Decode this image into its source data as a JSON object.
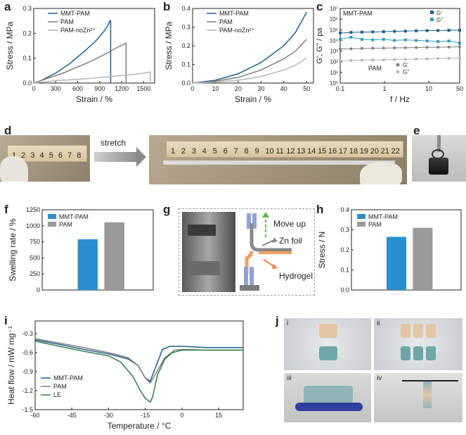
{
  "panels": {
    "a": "a",
    "b": "b",
    "c": "c",
    "d": "d",
    "e": "e",
    "f": "f",
    "g": "g",
    "h": "h",
    "i": "i",
    "j": "j"
  },
  "colors": {
    "mmt": "#1f5f8b",
    "pam": "#7f7f7f",
    "pamnozn": "#b5b5b5",
    "le": "#2e7d46",
    "bar_mmt": "#2a8fd0",
    "bar_pam": "#9a9a9a"
  },
  "chart_data": [
    {
      "id": "a",
      "type": "line",
      "title": "",
      "xlabel": "Strain / %",
      "ylabel": "Stress / MPa",
      "xlim": [
        0,
        1650
      ],
      "ylim": [
        0,
        0.3
      ],
      "xticks": [
        "0",
        "300",
        "600",
        "900",
        "1200",
        "1500"
      ],
      "yticks": [
        "0.0",
        "0.1",
        "0.2",
        "0.3"
      ],
      "series": [
        {
          "name": "MMT-PAM",
          "x": [
            0,
            100,
            300,
            500,
            700,
            850,
            950,
            1000,
            1040,
            1050,
            1050
          ],
          "y": [
            0,
            0.01,
            0.04,
            0.08,
            0.13,
            0.17,
            0.205,
            0.225,
            0.25,
            0.25,
            0
          ]
        },
        {
          "name": "PAM",
          "x": [
            0,
            200,
            400,
            600,
            800,
            1000,
            1150,
            1250,
            1260,
            1260
          ],
          "y": [
            0,
            0.02,
            0.04,
            0.065,
            0.09,
            0.12,
            0.145,
            0.158,
            0.16,
            0
          ]
        },
        {
          "name": "PAM-noZn²⁺",
          "x": [
            0,
            300,
            600,
            900,
            1200,
            1400,
            1550,
            1590,
            1590
          ],
          "y": [
            0,
            0.01,
            0.015,
            0.022,
            0.03,
            0.036,
            0.042,
            0.045,
            0
          ]
        }
      ]
    },
    {
      "id": "b",
      "type": "line",
      "title": "",
      "xlabel": "Strain / %",
      "ylabel": "Stress / MPa",
      "xlim": [
        0,
        53
      ],
      "ylim": [
        0,
        0.4
      ],
      "xticks": [
        "0",
        "10",
        "20",
        "30",
        "40",
        "50"
      ],
      "yticks": [
        "0.0",
        "0.1",
        "0.2",
        "0.3",
        "0.4"
      ],
      "series": [
        {
          "name": "MMT-PAM",
          "x": [
            0,
            10,
            20,
            30,
            40,
            45,
            50
          ],
          "y": [
            0,
            0.015,
            0.05,
            0.11,
            0.2,
            0.27,
            0.38
          ]
        },
        {
          "name": "PAM",
          "x": [
            0,
            10,
            20,
            30,
            40,
            45,
            50
          ],
          "y": [
            0,
            0.01,
            0.03,
            0.07,
            0.13,
            0.17,
            0.235
          ]
        },
        {
          "name": "PAM-noZn²⁺",
          "x": [
            0,
            10,
            20,
            30,
            40,
            45,
            50
          ],
          "y": [
            0,
            0.005,
            0.015,
            0.035,
            0.07,
            0.095,
            0.135
          ]
        }
      ]
    },
    {
      "id": "c",
      "type": "scatter",
      "title": "",
      "xlabel": "f / Hz",
      "ylabel": "G', G'' / pa",
      "xlim": [
        0.1,
        50
      ],
      "ylim": [
        1,
        10000000
      ],
      "xscale": "log",
      "yscale": "log",
      "xticks": [
        "0.1",
        "1",
        "10",
        "50"
      ],
      "yticks": [
        "10⁰",
        "10¹",
        "10²",
        "10³",
        "10⁴",
        "10⁵",
        "10⁶",
        "10⁷"
      ],
      "legend_groups": [
        {
          "title": "MMT-PAM",
          "items": [
            "G'",
            "G''"
          ]
        },
        {
          "title": "PAM",
          "items": [
            "G'",
            "G''"
          ]
        }
      ],
      "series": [
        {
          "name": "MMT-PAM G'",
          "y_log10": [
            4.7,
            4.75,
            4.78,
            4.8,
            4.82,
            4.85,
            4.87,
            4.9,
            4.92,
            4.93,
            4.95,
            4.96
          ]
        },
        {
          "name": "MMT-PAM G''",
          "y_log10": [
            4.1,
            4.3,
            4.1,
            4.05,
            4.1,
            4.0,
            4.05,
            4.0,
            3.95,
            3.9,
            3.95,
            3.75
          ]
        },
        {
          "name": "PAM G'",
          "y_log10": [
            3.2,
            3.22,
            3.25,
            3.27,
            3.28,
            3.3,
            3.32,
            3.33,
            3.35,
            3.36,
            3.38,
            3.4
          ]
        },
        {
          "name": "PAM G''",
          "y_log10": [
            2.1,
            2.12,
            2.15,
            2.17,
            2.18,
            2.2,
            2.22,
            2.25,
            2.27,
            2.3,
            2.32,
            2.35
          ]
        }
      ]
    },
    {
      "id": "f",
      "type": "bar",
      "title": "",
      "xlabel": "",
      "ylabel": "Swelling rate / %",
      "ylim": [
        0,
        1250
      ],
      "yticks": [
        "0",
        "250",
        "500",
        "750",
        "1000",
        "1250"
      ],
      "categories": [
        "MMT-PAM",
        "PAM"
      ],
      "values": [
        790,
        1055
      ]
    },
    {
      "id": "h",
      "type": "bar",
      "title": "",
      "xlabel": "",
      "ylabel": "Stress / N",
      "ylim": [
        0,
        0.4
      ],
      "yticks": [
        "0.0",
        "0.1",
        "0.2",
        "0.3",
        "0.4"
      ],
      "categories": [
        "MMT-PAM",
        "PAM"
      ],
      "values": [
        0.265,
        0.31
      ]
    },
    {
      "id": "i",
      "type": "line",
      "title": "",
      "xlabel": "Temperature / °C",
      "ylabel": "Heat flow / mW mg⁻¹",
      "xlim": [
        -60,
        25
      ],
      "ylim": [
        -1.5,
        -0.1
      ],
      "xticks": [
        "-60",
        "-45",
        "-30",
        "-15",
        "0",
        "15"
      ],
      "yticks": [
        "-0.3",
        "-0.6",
        "-0.9",
        "-1.2",
        "-1.5"
      ],
      "series": [
        {
          "name": "MMT-PAM",
          "x": [
            -60,
            -50,
            -40,
            -30,
            -22,
            -18,
            -15,
            -13,
            -11,
            -8,
            -5,
            0,
            10,
            25
          ],
          "y": [
            -0.4,
            -0.47,
            -0.55,
            -0.62,
            -0.7,
            -0.8,
            -1.0,
            -1.05,
            -0.85,
            -0.55,
            -0.5,
            -0.5,
            -0.52,
            -0.52
          ]
        },
        {
          "name": "PAM",
          "x": [
            -60,
            -50,
            -40,
            -30,
            -22,
            -18,
            -15,
            -13,
            -11,
            -7,
            -3,
            0,
            10,
            25
          ],
          "y": [
            -0.38,
            -0.45,
            -0.52,
            -0.6,
            -0.68,
            -0.8,
            -1.0,
            -1.08,
            -0.95,
            -0.68,
            -0.56,
            -0.55,
            -0.56,
            -0.56
          ]
        },
        {
          "name": "LE",
          "x": [
            -60,
            -50,
            -40,
            -30,
            -25,
            -20,
            -17,
            -15,
            -13,
            -12,
            -10,
            -7,
            -4,
            0,
            10,
            25
          ],
          "y": [
            -0.42,
            -0.5,
            -0.58,
            -0.65,
            -0.75,
            -0.98,
            -1.2,
            -1.32,
            -1.38,
            -1.3,
            -0.95,
            -0.7,
            -0.6,
            -0.56,
            -0.56,
            -0.56
          ]
        }
      ]
    }
  ],
  "photos": {
    "d_arrow_label": "stretch",
    "d_ruler_short": [
      "1",
      "2",
      "3",
      "4",
      "5",
      "6",
      "7",
      "8"
    ],
    "d_ruler_long": [
      "1",
      "2",
      "3",
      "4",
      "5",
      "6",
      "7",
      "8",
      "9",
      "10",
      "11",
      "12",
      "13",
      "14",
      "15",
      "16",
      "17",
      "18",
      "19",
      "20",
      "21",
      "22"
    ],
    "g_move_up": "Move  up",
    "g_zn_foil": "Zn foil",
    "g_hydrogel": "Hydrogel",
    "j_sub": [
      "i",
      "ii",
      "iii",
      "iv"
    ]
  }
}
